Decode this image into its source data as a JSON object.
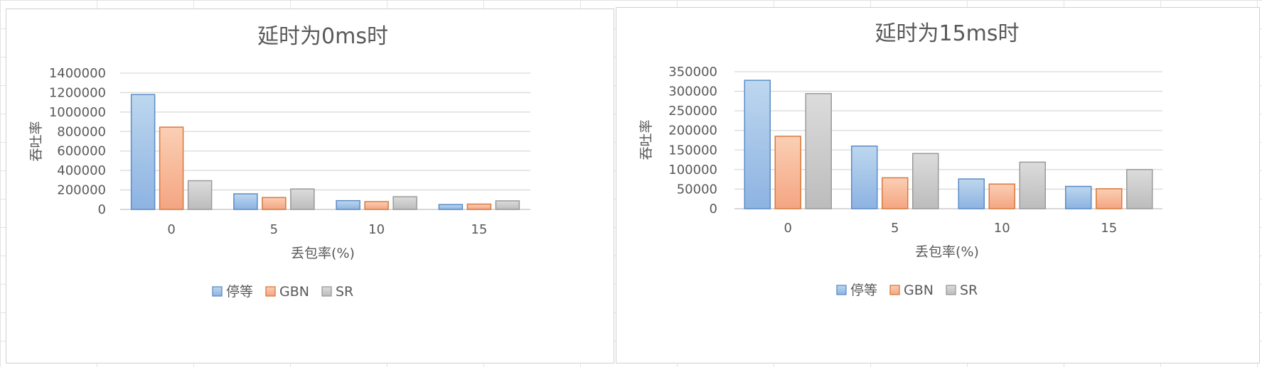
{
  "chart_data": [
    {
      "type": "bar",
      "title": "延时为0ms时",
      "xlabel": "丢包率(%)",
      "ylabel": "吞吐率",
      "categories": [
        "0",
        "5",
        "10",
        "15"
      ],
      "yticks": [
        "0",
        "200000",
        "400000",
        "600000",
        "800000",
        "1000000",
        "1200000",
        "1400000"
      ],
      "ylim": [
        0,
        1400000
      ],
      "grid": true,
      "legend_position": "bottom",
      "series": [
        {
          "name": "停等",
          "values": [
            1180000,
            160000,
            90000,
            50000
          ]
        },
        {
          "name": "GBN",
          "values": [
            845000,
            122000,
            80000,
            55000
          ]
        },
        {
          "name": "SR",
          "values": [
            295000,
            210000,
            130000,
            88000
          ]
        }
      ]
    },
    {
      "type": "bar",
      "title": "延时为15ms时",
      "xlabel": "丢包率(%)",
      "ylabel": "吞吐率",
      "categories": [
        "0",
        "5",
        "10",
        "15"
      ],
      "yticks": [
        "0",
        "50000",
        "100000",
        "150000",
        "200000",
        "250000",
        "300000",
        "350000"
      ],
      "ylim": [
        0,
        350000
      ],
      "grid": true,
      "legend_position": "bottom",
      "series": [
        {
          "name": "停等",
          "values": [
            328000,
            160000,
            76000,
            57000
          ]
        },
        {
          "name": "GBN",
          "values": [
            185000,
            79000,
            63000,
            51000
          ]
        },
        {
          "name": "SR",
          "values": [
            294000,
            141000,
            119000,
            100000
          ]
        }
      ]
    }
  ],
  "colors": {
    "series": [
      {
        "top": "#bdd7ee",
        "bottom": "#8db3e2",
        "stroke": "#5b8cc6"
      },
      {
        "top": "#fbcfb4",
        "bottom": "#f4a582",
        "stroke": "#d87a3c"
      },
      {
        "top": "#dcdcdc",
        "bottom": "#bcbcbc",
        "stroke": "#9a9a9a"
      }
    ]
  }
}
